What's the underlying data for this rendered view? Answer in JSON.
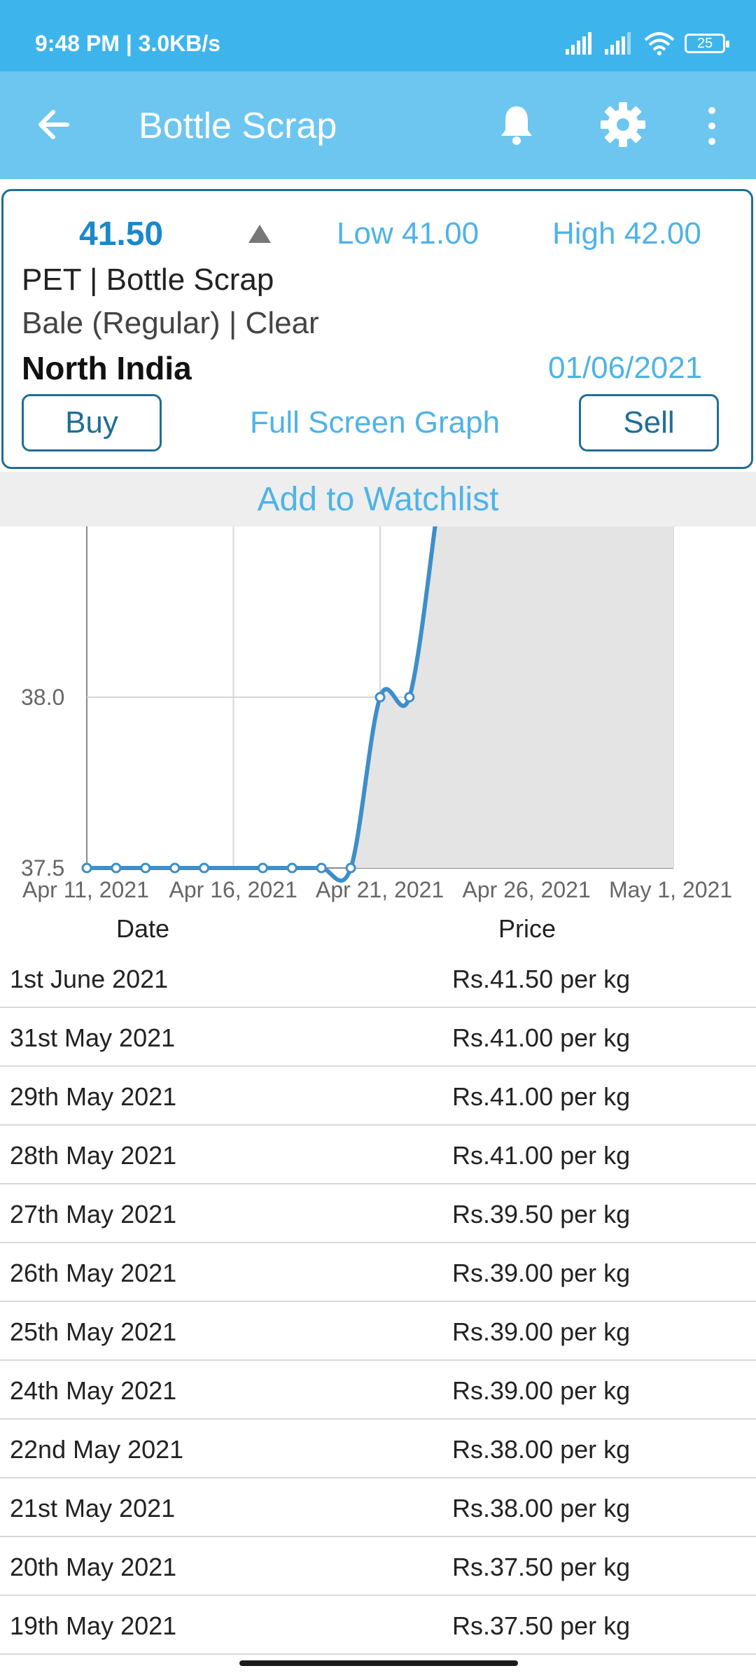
{
  "status_bar": {
    "time": "9:48 PM | 3.0KB/s",
    "battery": "25"
  },
  "app_bar": {
    "title": "Bottle Scrap"
  },
  "card": {
    "price": "41.50",
    "low": "Low 41.00",
    "high": "High 42.00",
    "product_line1": "PET | Bottle Scrap",
    "product_line2": "Bale (Regular) | Clear",
    "region": "North India",
    "date": "01/06/2021",
    "buy_label": "Buy",
    "full_screen_label": "Full Screen Graph",
    "sell_label": "Sell"
  },
  "watchlist_label": "Add to Watchlist",
  "colors": {
    "accent": "#3db5ec",
    "app_bar": "#6cc6f0",
    "link": "#4fb3e6",
    "outline": "#1f6e95",
    "line": "#3d8ec9"
  },
  "chart_data": {
    "type": "line",
    "x": [
      "2021-04-11",
      "2021-04-12",
      "2021-04-13",
      "2021-04-14",
      "2021-04-15",
      "2021-04-17",
      "2021-04-18",
      "2021-04-19",
      "2021-04-20",
      "2021-04-21",
      "2021-04-22"
    ],
    "y": [
      37.5,
      37.5,
      37.5,
      37.5,
      37.5,
      37.5,
      37.5,
      37.5,
      37.5,
      38.0,
      38.0
    ],
    "x_ticks": [
      "Apr 11, 2021",
      "Apr 16, 2021",
      "Apr 21, 2021",
      "Apr 26, 2021",
      "May 1, 2021"
    ],
    "y_ticks": [
      "37.5",
      "38.0"
    ],
    "xlim": [
      "2021-04-11",
      "2021-05-01"
    ],
    "ylim": [
      37.5,
      38.5
    ],
    "grid": true
  },
  "table": {
    "headers": {
      "date": "Date",
      "price": "Price"
    },
    "rows": [
      {
        "date": "1st June 2021",
        "price": "Rs.41.50 per kg"
      },
      {
        "date": "31st May 2021",
        "price": "Rs.41.00 per kg"
      },
      {
        "date": "29th May 2021",
        "price": "Rs.41.00 per kg"
      },
      {
        "date": "28th May 2021",
        "price": "Rs.41.00 per kg"
      },
      {
        "date": "27th May 2021",
        "price": "Rs.39.50 per kg"
      },
      {
        "date": "26th May 2021",
        "price": "Rs.39.00 per kg"
      },
      {
        "date": "25th May 2021",
        "price": "Rs.39.00 per kg"
      },
      {
        "date": "24th May 2021",
        "price": "Rs.39.00 per kg"
      },
      {
        "date": "22nd May 2021",
        "price": "Rs.38.00 per kg"
      },
      {
        "date": "21st May 2021",
        "price": "Rs.38.00 per kg"
      },
      {
        "date": "20th May 2021",
        "price": "Rs.37.50 per kg"
      },
      {
        "date": "19th May 2021",
        "price": "Rs.37.50 per kg"
      }
    ]
  }
}
